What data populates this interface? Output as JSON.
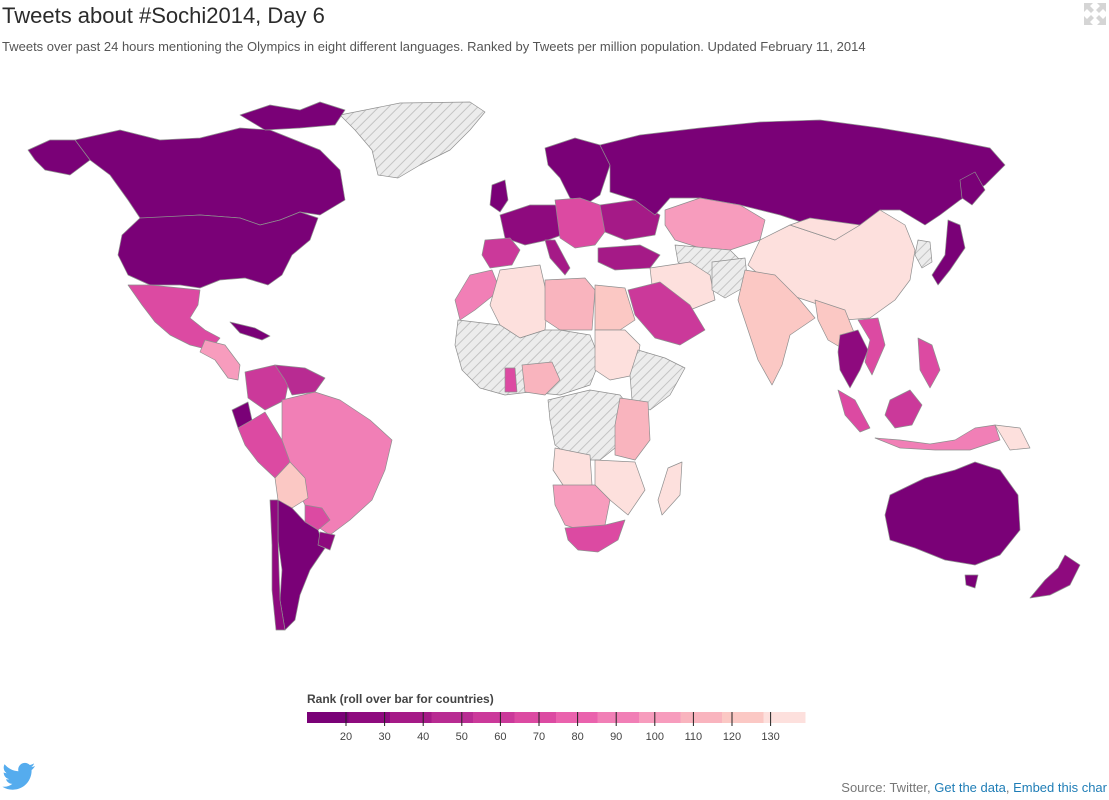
{
  "header": {
    "title": "Tweets about #Sochi2014, Day 6",
    "subtitle": "Tweets over past 24 hours mentioning the Olympics in eight different languages. Ranked by Tweets per million population. Updated February 11, 2014"
  },
  "icons": {
    "expand": "expand-icon",
    "twitter": "twitter-bird-icon"
  },
  "legend": {
    "title": "Rank (roll over bar for countries)",
    "ticks": [
      "20",
      "30",
      "40",
      "50",
      "60",
      "70",
      "80",
      "90",
      "100",
      "110",
      "120",
      "130"
    ],
    "colors": [
      "#7a0177",
      "#8e0a7e",
      "#a51a87",
      "#b82b92",
      "#cb399a",
      "#dc4aa2",
      "#ea62ad",
      "#f17fb6",
      "#f79cbd",
      "#f9b4be",
      "#fbc8c4",
      "#fde0dd"
    ]
  },
  "colors": {
    "no_data": "#e6e6e6",
    "land_stroke": "#9a9a9a",
    "accent_link": "#1f7db6"
  },
  "footer": {
    "source_prefix": "Source: Twitter,",
    "get_data": "Get the data",
    "embed": "Embed this char"
  }
}
